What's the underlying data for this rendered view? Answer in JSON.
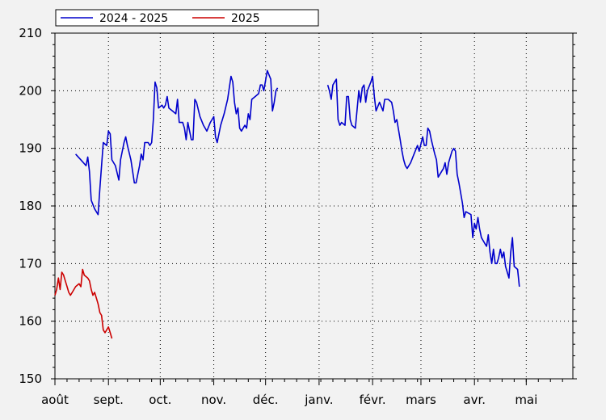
{
  "chart_data": {
    "type": "line",
    "title": "",
    "xlabel": "",
    "ylabel": "",
    "ylim": [
      150,
      210
    ],
    "yticks": [
      150,
      160,
      170,
      180,
      190,
      200,
      210
    ],
    "x_domain_days": [
      0,
      300
    ],
    "xtick_labels": [
      {
        "label": "août",
        "day": 0
      },
      {
        "label": "sept.",
        "day": 31
      },
      {
        "label": "oct.",
        "day": 61
      },
      {
        "label": "nov.",
        "day": 92
      },
      {
        "label": "déc.",
        "day": 122
      },
      {
        "label": "janv.",
        "day": 153
      },
      {
        "label": "févr.",
        "day": 184
      },
      {
        "label": "mars",
        "day": 212
      },
      {
        "label": "avr.",
        "day": 243
      },
      {
        "label": "mai",
        "day": 273
      }
    ],
    "grid": true,
    "legend_position": "top-left",
    "series": [
      {
        "name": "2024 - 2025",
        "color": "#0000cc",
        "points": [
          [
            12,
            189
          ],
          [
            15,
            188
          ],
          [
            18,
            187
          ],
          [
            19,
            188.5
          ],
          [
            20,
            186
          ],
          [
            21,
            181
          ],
          [
            23,
            179.5
          ],
          [
            25,
            178.5
          ],
          [
            26,
            183
          ],
          [
            27,
            187
          ],
          [
            28,
            191
          ],
          [
            30,
            190.5
          ],
          [
            31,
            193
          ],
          [
            32,
            192.5
          ],
          [
            33,
            188
          ],
          [
            35,
            187
          ],
          [
            37,
            184.5
          ],
          [
            38,
            188
          ],
          [
            40,
            191
          ],
          [
            41,
            192
          ],
          [
            42,
            190.5
          ],
          [
            44,
            188
          ],
          [
            46,
            184
          ],
          [
            47,
            184
          ],
          [
            49,
            187
          ],
          [
            50,
            189
          ],
          [
            51,
            188
          ],
          [
            52,
            191
          ],
          [
            54,
            191
          ],
          [
            55,
            190.5
          ],
          [
            56,
            191
          ],
          [
            57,
            195
          ],
          [
            58,
            201.5
          ],
          [
            59,
            200.5
          ],
          [
            60,
            197
          ],
          [
            62,
            197.5
          ],
          [
            63,
            197
          ],
          [
            64,
            197.5
          ],
          [
            65,
            199
          ],
          [
            66,
            197
          ],
          [
            68,
            196.5
          ],
          [
            70,
            196
          ],
          [
            71,
            198.5
          ],
          [
            72,
            194.5
          ],
          [
            74,
            194.5
          ],
          [
            75,
            193.5
          ],
          [
            76,
            191.5
          ],
          [
            77,
            194.5
          ],
          [
            79,
            191.5
          ],
          [
            80,
            191.5
          ],
          [
            81,
            198.5
          ],
          [
            82,
            198
          ],
          [
            84,
            195.5
          ],
          [
            86,
            194
          ],
          [
            88,
            193
          ],
          [
            90,
            194.5
          ],
          [
            92,
            195.5
          ],
          [
            93,
            192
          ],
          [
            94,
            191
          ],
          [
            96,
            194
          ],
          [
            98,
            196
          ],
          [
            100,
            198.5
          ],
          [
            102,
            202.5
          ],
          [
            103,
            201.5
          ],
          [
            104,
            198
          ],
          [
            105,
            196
          ],
          [
            106,
            197
          ],
          [
            107,
            193.5
          ],
          [
            108,
            193
          ],
          [
            110,
            194
          ],
          [
            111,
            193.5
          ],
          [
            112,
            196
          ],
          [
            113,
            195
          ],
          [
            114,
            198.5
          ],
          [
            116,
            199
          ],
          [
            118,
            199.5
          ],
          [
            119,
            201
          ],
          [
            120,
            201
          ],
          [
            121,
            200
          ],
          [
            123,
            203.5
          ],
          [
            125,
            202
          ],
          [
            126,
            196.5
          ],
          [
            127,
            198
          ],
          [
            128,
            200
          ],
          [
            129,
            200.5
          ],
          null,
          [
            158,
            201
          ],
          [
            159,
            200
          ],
          [
            160,
            198.5
          ],
          [
            161,
            201
          ],
          [
            162,
            201.5
          ],
          [
            163,
            202
          ],
          [
            164,
            195
          ],
          [
            165,
            194
          ],
          [
            166,
            194.5
          ],
          [
            168,
            194
          ],
          [
            169,
            199
          ],
          [
            170,
            199
          ],
          [
            171,
            195
          ],
          [
            172,
            194
          ],
          [
            174,
            193.5
          ],
          [
            176,
            200
          ],
          [
            177,
            198
          ],
          [
            178,
            200.5
          ],
          [
            179,
            201
          ],
          [
            180,
            198
          ],
          [
            181,
            200
          ],
          [
            183,
            201.5
          ],
          [
            184,
            202.5
          ],
          [
            185,
            199
          ],
          [
            186,
            196.5
          ],
          [
            188,
            198
          ],
          [
            190,
            196.5
          ],
          [
            191,
            198.5
          ],
          [
            193,
            198.5
          ],
          [
            195,
            198
          ],
          [
            196,
            196.5
          ],
          [
            197,
            194.5
          ],
          [
            198,
            195
          ],
          [
            200,
            191.5
          ],
          [
            201,
            189.5
          ],
          [
            202,
            188
          ],
          [
            203,
            187
          ],
          [
            204,
            186.5
          ],
          [
            206,
            187.5
          ],
          [
            208,
            189
          ],
          [
            210,
            190.5
          ],
          [
            211,
            189.5
          ],
          [
            213,
            192
          ],
          [
            214,
            190.5
          ],
          [
            215,
            190.5
          ],
          [
            216,
            193.5
          ],
          [
            217,
            193
          ],
          [
            218,
            191.5
          ],
          [
            220,
            189
          ],
          [
            221,
            188
          ],
          [
            222,
            185
          ],
          [
            224,
            186
          ],
          [
            225,
            186.5
          ],
          [
            226,
            187.5
          ],
          [
            227,
            185.5
          ],
          [
            228,
            187.5
          ],
          [
            230,
            189.5
          ],
          [
            231,
            190
          ],
          [
            232,
            189.5
          ],
          [
            233,
            185.5
          ],
          [
            234,
            184
          ],
          [
            236,
            180.5
          ],
          [
            237,
            178
          ],
          [
            238,
            179
          ],
          [
            241,
            178.5
          ],
          [
            242,
            174.5
          ],
          [
            243,
            177
          ],
          [
            244,
            176
          ],
          [
            245,
            178
          ],
          [
            246,
            176
          ],
          [
            247,
            174.5
          ],
          [
            249,
            173.5
          ],
          [
            250,
            173
          ],
          [
            251,
            175
          ],
          [
            252,
            172
          ],
          [
            253,
            170
          ],
          [
            254,
            172.5
          ],
          [
            255,
            170
          ],
          [
            256,
            170
          ],
          [
            257,
            171
          ],
          [
            258,
            172.5
          ],
          [
            259,
            171
          ],
          [
            260,
            172
          ],
          [
            261,
            169.5
          ],
          [
            262,
            168.5
          ],
          [
            263,
            167.5
          ],
          [
            264,
            172
          ],
          [
            265,
            174.5
          ],
          [
            266,
            169.5
          ],
          [
            268,
            169
          ],
          [
            269,
            166
          ]
        ]
      },
      {
        "name": "2025",
        "color": "#cc0000",
        "points": [
          [
            0,
            164.5
          ],
          [
            1,
            165.5
          ],
          [
            2,
            167.5
          ],
          [
            3,
            165.5
          ],
          [
            4,
            168.5
          ],
          [
            5,
            168
          ],
          [
            6,
            167
          ],
          [
            7,
            166
          ],
          [
            8,
            165
          ],
          [
            9,
            164.5
          ],
          [
            10,
            165
          ],
          [
            12,
            166
          ],
          [
            14,
            166.5
          ],
          [
            15,
            166
          ],
          [
            16,
            169
          ],
          [
            17,
            168
          ],
          [
            19,
            167.5
          ],
          [
            20,
            167
          ],
          [
            21,
            165.5
          ],
          [
            22,
            164.5
          ],
          [
            23,
            165
          ],
          [
            24,
            164
          ],
          [
            25,
            163
          ],
          [
            26,
            161.5
          ],
          [
            27,
            161
          ],
          [
            28,
            158.5
          ],
          [
            29,
            158
          ],
          [
            31,
            159
          ],
          [
            32,
            158
          ],
          [
            33,
            157
          ]
        ]
      }
    ]
  }
}
